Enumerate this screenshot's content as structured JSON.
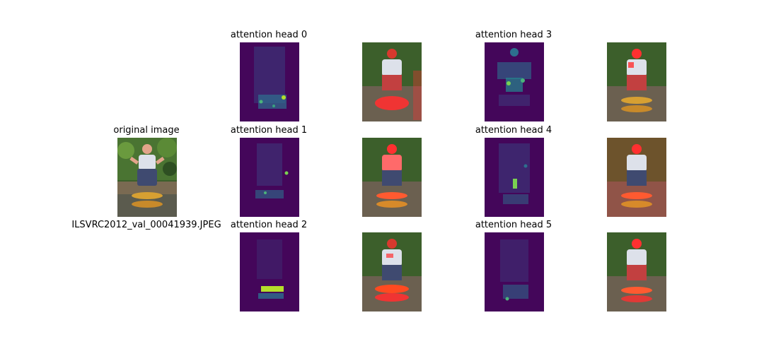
{
  "original": {
    "title": "original image",
    "caption": "ILSVRC2012_val_00041939.JPEG"
  },
  "heads": [
    {
      "title": "attention head 0"
    },
    {
      "title": "attention head 1"
    },
    {
      "title": "attention head 2"
    },
    {
      "title": "attention head 3"
    },
    {
      "title": "attention head 4"
    },
    {
      "title": "attention head 5"
    }
  ],
  "colors": {
    "viridis_low": "#44065a",
    "viridis_mid": "#2d6f8e",
    "viridis_high": "#b5de2b",
    "overlay_red": "#ff3030",
    "foliage": "#3d6a2a",
    "shirt": "#d9dde6",
    "fish": "#d79a2e"
  }
}
